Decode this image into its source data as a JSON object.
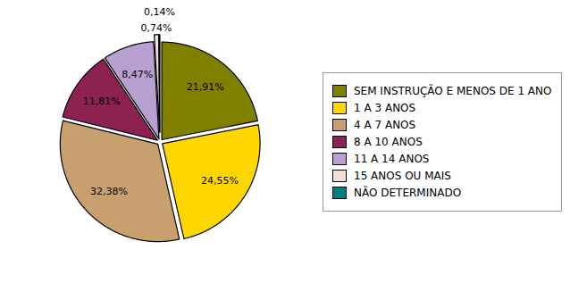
{
  "chart_data": {
    "type": "pie",
    "categories": [
      "SEM INSTRUÇÃO E MENOS DE 1 ANO",
      "1 A 3 ANOS",
      "4 A 7 ANOS",
      "8 A 10 ANOS",
      "11 A 14 ANOS",
      "15 ANOS OU MAIS",
      "NÃO DETERMINADO"
    ],
    "values": [
      21.91,
      24.55,
      32.38,
      11.81,
      8.47,
      0.74,
      0.14
    ],
    "value_labels": [
      "21,91%",
      "24,55%",
      "32,38%",
      "11,81%",
      "8,47%",
      "0,74%",
      "0,14%"
    ],
    "colors": [
      "#808000",
      "#FFD700",
      "#C8A070",
      "#8B2252",
      "#B8A0D0",
      "#F0E0D8",
      "#008080"
    ],
    "data_labels": true,
    "legend": "right"
  }
}
